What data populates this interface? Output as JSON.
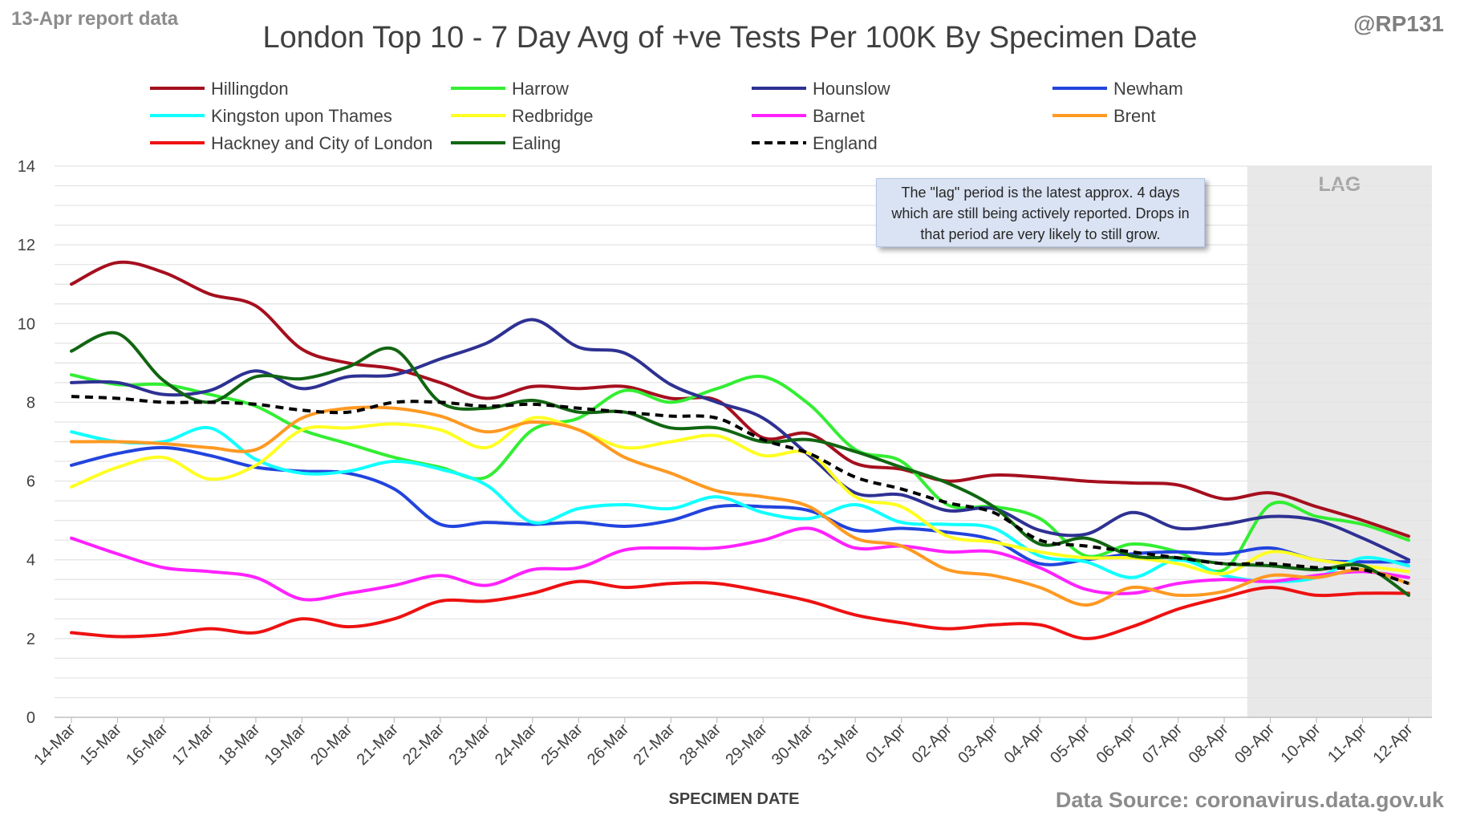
{
  "report_note": "13-Apr report data",
  "handle": "@RP131",
  "source": "Data Source: coronavirus.data.gov.uk",
  "annotation": "The \"lag\" period is the latest approx. 4 days which are still being actively reported. Drops in that period are very likely to still grow.",
  "chart_data": {
    "type": "line",
    "title": "London Top 10 - 7 Day Avg of +ve Tests Per 100K By Specimen Date",
    "xlabel": "SPECIMEN DATE",
    "ylabel": "",
    "ylim": [
      0,
      14
    ],
    "yticks": [
      0,
      2,
      4,
      6,
      8,
      10,
      12,
      14
    ],
    "grid": true,
    "legend_position": "top",
    "shaded_region": {
      "label": "LAG",
      "from": "09-Apr",
      "to": "12-Apr",
      "color": "#e8e8e8"
    },
    "x": [
      "14-Mar",
      "15-Mar",
      "16-Mar",
      "17-Mar",
      "18-Mar",
      "19-Mar",
      "20-Mar",
      "21-Mar",
      "22-Mar",
      "23-Mar",
      "24-Mar",
      "25-Mar",
      "26-Mar",
      "27-Mar",
      "28-Mar",
      "29-Mar",
      "30-Mar",
      "31-Mar",
      "01-Apr",
      "02-Apr",
      "03-Apr",
      "04-Apr",
      "05-Apr",
      "06-Apr",
      "07-Apr",
      "08-Apr",
      "09-Apr",
      "10-Apr",
      "11-Apr",
      "12-Apr"
    ],
    "series": [
      {
        "name": "Hillingdon",
        "color": "#a50f1e",
        "dash": false,
        "values": [
          11.0,
          11.55,
          11.3,
          10.75,
          10.45,
          9.35,
          9.0,
          8.85,
          8.5,
          8.1,
          8.4,
          8.35,
          8.4,
          8.1,
          8.05,
          7.1,
          7.2,
          6.45,
          6.3,
          6.0,
          6.15,
          6.1,
          6.0,
          5.95,
          5.9,
          5.55,
          5.7,
          5.35,
          5.0,
          4.6
        ]
      },
      {
        "name": "Harrow",
        "color": "#33ee33",
        "dash": false,
        "values": [
          8.7,
          8.45,
          8.45,
          8.2,
          7.9,
          7.3,
          6.95,
          6.6,
          6.35,
          6.1,
          7.3,
          7.6,
          8.3,
          8.0,
          8.35,
          8.65,
          7.95,
          6.8,
          6.5,
          5.4,
          5.35,
          5.05,
          4.1,
          4.4,
          4.2,
          3.75,
          5.4,
          5.1,
          4.9,
          4.5
        ]
      },
      {
        "name": "Hounslow",
        "color": "#2e3192",
        "dash": false,
        "values": [
          8.5,
          8.5,
          8.2,
          8.3,
          8.8,
          8.35,
          8.65,
          8.7,
          9.1,
          9.5,
          10.1,
          9.4,
          9.25,
          8.45,
          8.0,
          7.6,
          6.65,
          5.7,
          5.65,
          5.25,
          5.3,
          4.75,
          4.65,
          5.2,
          4.8,
          4.9,
          5.1,
          5.0,
          4.55,
          4.0
        ]
      },
      {
        "name": "Newham",
        "color": "#2244dd",
        "dash": false,
        "values": [
          6.4,
          6.7,
          6.85,
          6.65,
          6.35,
          6.25,
          6.2,
          5.8,
          4.9,
          4.95,
          4.9,
          4.95,
          4.85,
          5.0,
          5.35,
          5.35,
          5.25,
          4.75,
          4.8,
          4.7,
          4.5,
          3.9,
          4.0,
          4.15,
          4.2,
          4.15,
          4.3,
          4.0,
          3.95,
          3.95
        ]
      },
      {
        "name": "Kingston upon Thames",
        "color": "#11ffff",
        "dash": false,
        "values": [
          7.25,
          7.0,
          7.0,
          7.35,
          6.55,
          6.2,
          6.25,
          6.5,
          6.3,
          5.9,
          4.95,
          5.3,
          5.4,
          5.3,
          5.6,
          5.2,
          5.05,
          5.4,
          4.95,
          4.9,
          4.8,
          4.1,
          3.95,
          3.55,
          4.0,
          3.6,
          3.45,
          3.55,
          4.05,
          3.85
        ]
      },
      {
        "name": "Redbridge",
        "color": "#ffff22",
        "dash": false,
        "values": [
          5.85,
          6.35,
          6.6,
          6.05,
          6.4,
          7.3,
          7.35,
          7.45,
          7.3,
          6.85,
          7.6,
          7.3,
          6.85,
          7.0,
          7.15,
          6.65,
          6.7,
          5.6,
          5.35,
          4.6,
          4.45,
          4.2,
          4.05,
          4.05,
          3.9,
          3.65,
          4.2,
          4.0,
          3.85,
          3.7
        ]
      },
      {
        "name": "Barnet",
        "color": "#ff22ff",
        "dash": false,
        "values": [
          4.55,
          4.15,
          3.8,
          3.7,
          3.55,
          3.0,
          3.15,
          3.35,
          3.6,
          3.35,
          3.75,
          3.8,
          4.25,
          4.3,
          4.3,
          4.5,
          4.8,
          4.3,
          4.35,
          4.2,
          4.2,
          3.8,
          3.25,
          3.15,
          3.4,
          3.5,
          3.45,
          3.6,
          3.7,
          3.55
        ]
      },
      {
        "name": "Brent",
        "color": "#ff9922",
        "dash": false,
        "values": [
          7.0,
          7.0,
          6.95,
          6.85,
          6.8,
          7.6,
          7.85,
          7.85,
          7.65,
          7.25,
          7.5,
          7.3,
          6.6,
          6.2,
          5.75,
          5.6,
          5.35,
          4.55,
          4.35,
          3.75,
          3.6,
          3.3,
          2.85,
          3.3,
          3.1,
          3.2,
          3.6,
          3.55,
          3.75,
          3.4
        ]
      },
      {
        "name": "Hackney and City of London",
        "color": "#ee1111",
        "dash": false,
        "values": [
          2.15,
          2.05,
          2.1,
          2.25,
          2.15,
          2.5,
          2.3,
          2.5,
          2.95,
          2.95,
          3.15,
          3.45,
          3.3,
          3.4,
          3.4,
          3.2,
          2.95,
          2.6,
          2.4,
          2.25,
          2.35,
          2.35,
          2.0,
          2.3,
          2.75,
          3.05,
          3.3,
          3.1,
          3.15,
          3.15
        ]
      },
      {
        "name": "Ealing",
        "color": "#116611",
        "dash": false,
        "values": [
          9.3,
          9.75,
          8.55,
          8.0,
          8.65,
          8.6,
          8.9,
          9.35,
          8.0,
          7.85,
          8.05,
          7.75,
          7.75,
          7.35,
          7.35,
          7.0,
          7.05,
          6.75,
          6.35,
          5.95,
          5.35,
          4.4,
          4.55,
          4.1,
          4.05,
          3.9,
          3.85,
          3.75,
          3.85,
          3.1
        ]
      },
      {
        "name": "England",
        "color": "#000000",
        "dash": true,
        "values": [
          8.15,
          8.1,
          8.0,
          8.0,
          7.95,
          7.8,
          7.75,
          8.0,
          8.0,
          7.9,
          7.95,
          7.85,
          7.75,
          7.65,
          7.6,
          7.05,
          6.7,
          6.1,
          5.8,
          5.45,
          5.2,
          4.5,
          4.35,
          4.2,
          4.05,
          3.9,
          3.9,
          3.8,
          3.75,
          3.4
        ]
      }
    ]
  }
}
